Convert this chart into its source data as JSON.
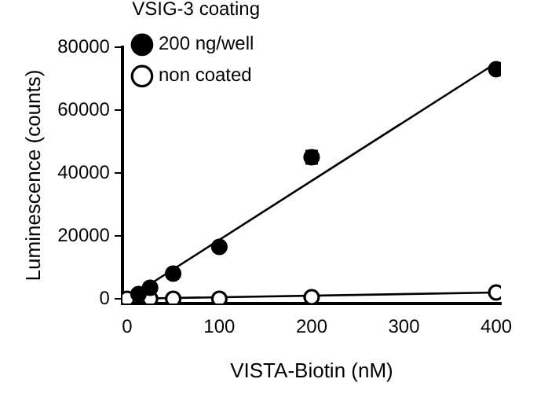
{
  "chart_data": {
    "type": "scatter",
    "xlabel": "VISTA-Biotin (nM)",
    "ylabel": "Luminescence (counts)",
    "legend_title": "VSIG-3 coating",
    "xlim": [
      -5,
      405
    ],
    "ylim": [
      -1500,
      80000
    ],
    "xticks": [
      0,
      100,
      200,
      300,
      400
    ],
    "yticks": [
      0,
      20000,
      40000,
      60000,
      80000
    ],
    "grid": false,
    "legend": "top left",
    "marker": "circle",
    "series": [
      {
        "name": "200 ng/well",
        "color": "#000000",
        "x": [
          12.5,
          25,
          50,
          100,
          200,
          400
        ],
        "values": [
          1500,
          3500,
          8000,
          16500,
          45000,
          73000
        ],
        "errors": [
          null,
          null,
          null,
          null,
          2000,
          null
        ]
      },
      {
        "name": "non coated",
        "color": "#000000",
        "marker": "circle-open",
        "x": [
          0,
          25,
          50,
          100,
          200,
          400
        ],
        "values": [
          0,
          0,
          0,
          0,
          500,
          2000
        ]
      },
      {
        "type": "line",
        "color": "#000000",
        "marker": "none",
        "x": [
          0,
          400
        ],
        "values": [
          0,
          75000
        ]
      },
      {
        "type": "line",
        "color": "#000000",
        "marker": "none",
        "x": [
          0,
          400
        ],
        "values": [
          0,
          2000
        ]
      }
    ]
  }
}
